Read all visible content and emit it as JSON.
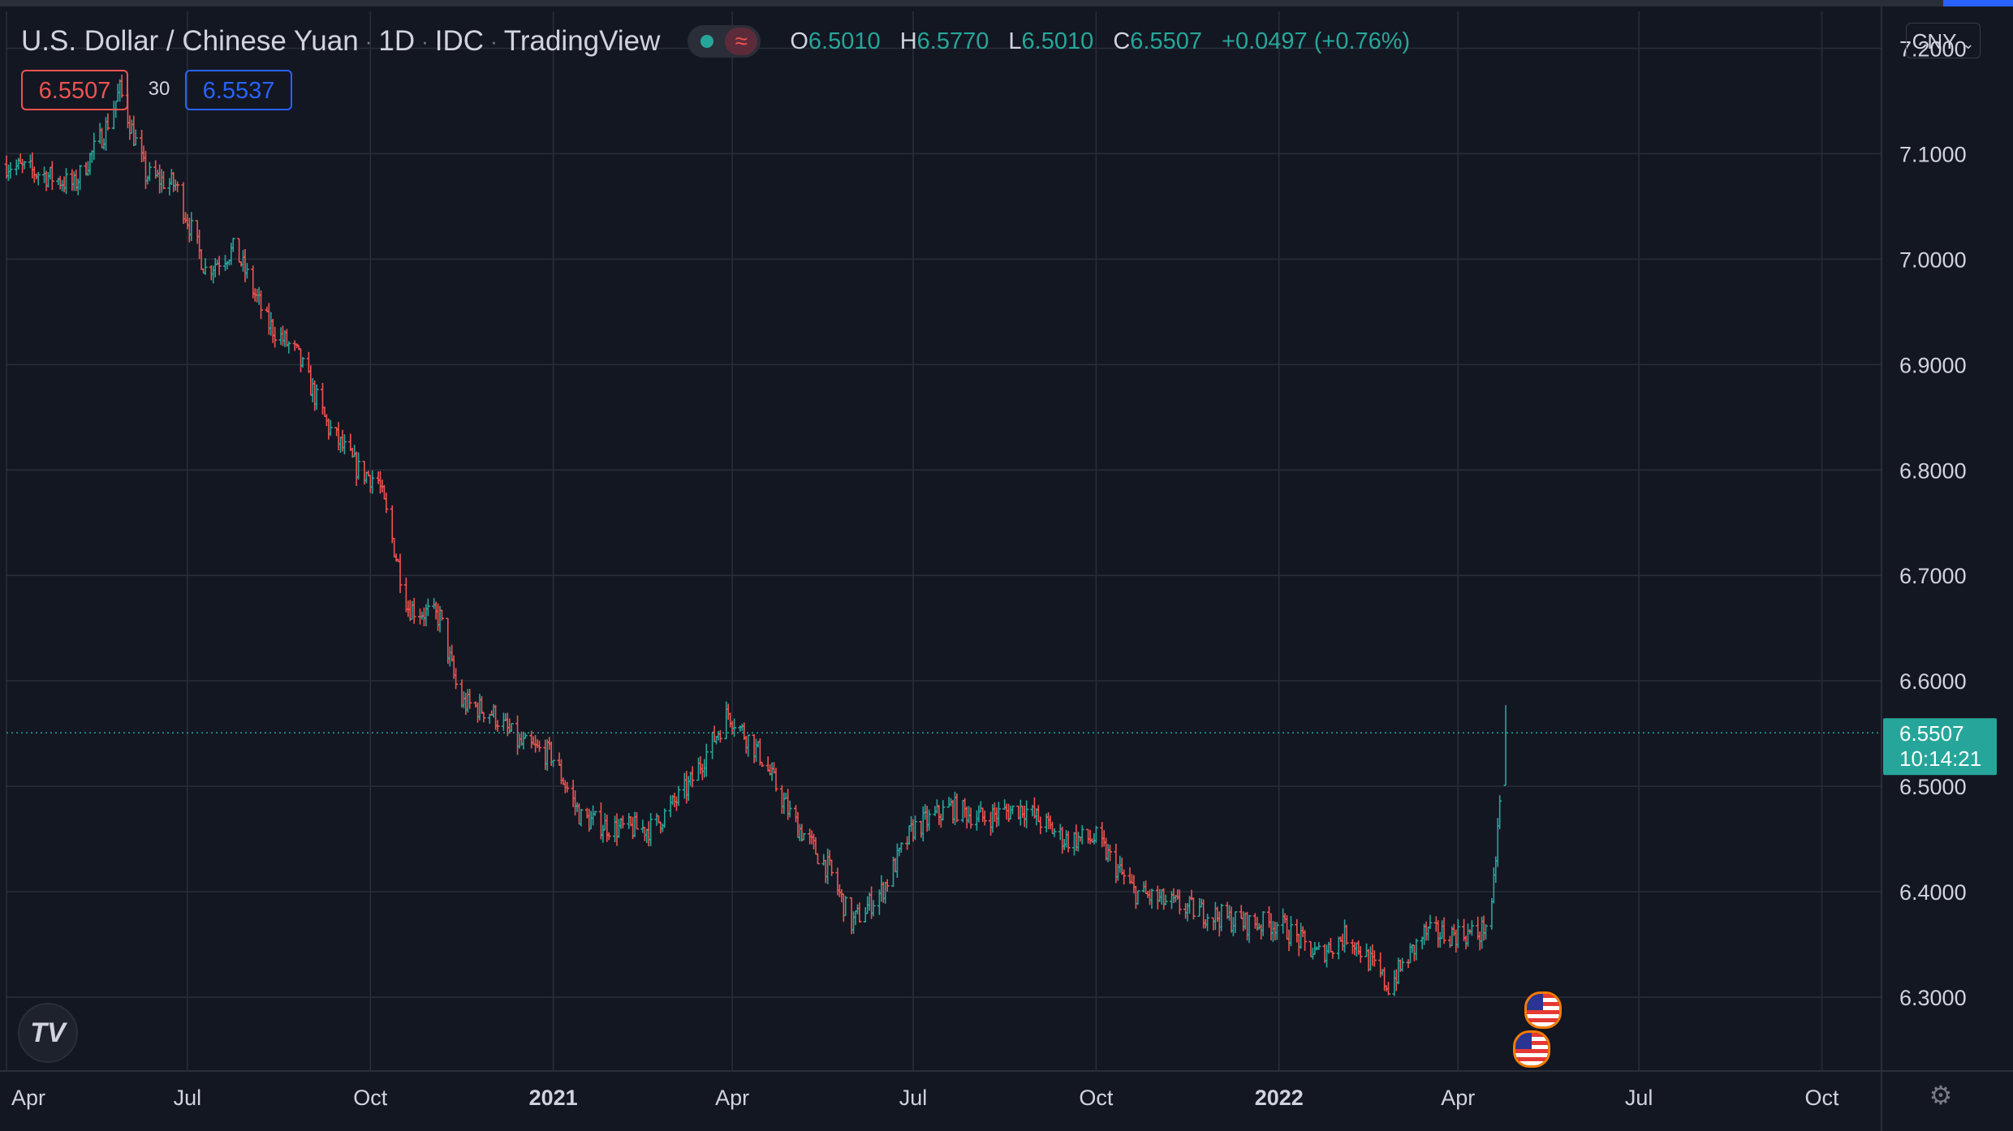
{
  "header": {
    "symbol": "U.S. Dollar / Chinese Yuan",
    "interval": "1D",
    "exchange": "IDC",
    "source": "TradingView",
    "ohlc": {
      "o_label": "O",
      "o": "6.5010",
      "h_label": "H",
      "h": "6.5770",
      "l_label": "L",
      "l": "6.5010",
      "c_label": "C",
      "c": "6.5507",
      "change": "+0.0497 (+0.76%)"
    },
    "bid": "6.5507",
    "spread": "30",
    "ask": "6.5537",
    "currency": "CNY"
  },
  "price_label": {
    "price": "6.5507",
    "countdown": "10:14:21"
  },
  "icons": [
    "market-status-icon",
    "tradingview-logo-icon",
    "us-flag-event-icon",
    "settings-gear-icon"
  ],
  "colors": {
    "background": "#131722",
    "up": "#26a69a",
    "down": "#ef5350",
    "grid": "#2a2e39",
    "text": "#d1d4dc",
    "ask": "#2962ff"
  },
  "chart_data": {
    "type": "candlestick",
    "title": "U.S. Dollar / Chinese Yuan · 1D · IDC",
    "ylim": [
      6.23,
      7.235
    ],
    "y_ticks": [
      "7.2000",
      "7.1000",
      "7.0000",
      "6.9000",
      "6.8000",
      "6.7000",
      "6.6000",
      "6.5000",
      "6.4000",
      "6.3000"
    ],
    "x_ticks": [
      "Apr",
      "Jul",
      "Oct",
      "2021",
      "Apr",
      "Jul",
      "Oct",
      "2022",
      "Apr",
      "Jul",
      "Oct"
    ],
    "x_range": [
      "2020-04-01",
      "2022-10-31"
    ],
    "last_price": 6.5507,
    "grid": true,
    "series": [
      {
        "name": "USDCNY",
        "points": [
          [
            "2020-04-01",
            7.09
          ],
          [
            "2020-04-20",
            7.08
          ],
          [
            "2020-05-05",
            7.07
          ],
          [
            "2020-05-20",
            7.12
          ],
          [
            "2020-05-28",
            7.16
          ],
          [
            "2020-06-10",
            7.08
          ],
          [
            "2020-06-25",
            7.07
          ],
          [
            "2020-07-10",
            6.99
          ],
          [
            "2020-07-25",
            7.01
          ],
          [
            "2020-08-10",
            6.94
          ],
          [
            "2020-08-25",
            6.91
          ],
          [
            "2020-09-10",
            6.84
          ],
          [
            "2020-09-25",
            6.8
          ],
          [
            "2020-10-05",
            6.79
          ],
          [
            "2020-10-20",
            6.67
          ],
          [
            "2020-11-05",
            6.66
          ],
          [
            "2020-11-15",
            6.58
          ],
          [
            "2020-12-01",
            6.57
          ],
          [
            "2020-12-15",
            6.54
          ],
          [
            "2020-12-31",
            6.53
          ],
          [
            "2021-01-15",
            6.47
          ],
          [
            "2021-02-01",
            6.46
          ],
          [
            "2021-02-20",
            6.46
          ],
          [
            "2021-03-10",
            6.5
          ],
          [
            "2021-03-30",
            6.57
          ],
          [
            "2021-04-15",
            6.53
          ],
          [
            "2021-05-01",
            6.47
          ],
          [
            "2021-05-20",
            6.42
          ],
          [
            "2021-05-31",
            6.37
          ],
          [
            "2021-06-15",
            6.4
          ],
          [
            "2021-07-01",
            6.46
          ],
          [
            "2021-07-20",
            6.48
          ],
          [
            "2021-08-05",
            6.47
          ],
          [
            "2021-08-25",
            6.48
          ],
          [
            "2021-09-15",
            6.45
          ],
          [
            "2021-10-01",
            6.45
          ],
          [
            "2021-10-20",
            6.4
          ],
          [
            "2021-11-05",
            6.39
          ],
          [
            "2021-11-25",
            6.38
          ],
          [
            "2021-12-15",
            6.37
          ],
          [
            "2022-01-01",
            6.37
          ],
          [
            "2022-01-20",
            6.34
          ],
          [
            "2022-02-05",
            6.36
          ],
          [
            "2022-02-25",
            6.31
          ],
          [
            "2022-03-15",
            6.36
          ],
          [
            "2022-04-01",
            6.36
          ],
          [
            "2022-04-12",
            6.36
          ],
          [
            "2022-04-18",
            6.38
          ],
          [
            "2022-04-21",
            6.46
          ],
          [
            "2022-04-25",
            6.5507
          ]
        ]
      }
    ]
  }
}
